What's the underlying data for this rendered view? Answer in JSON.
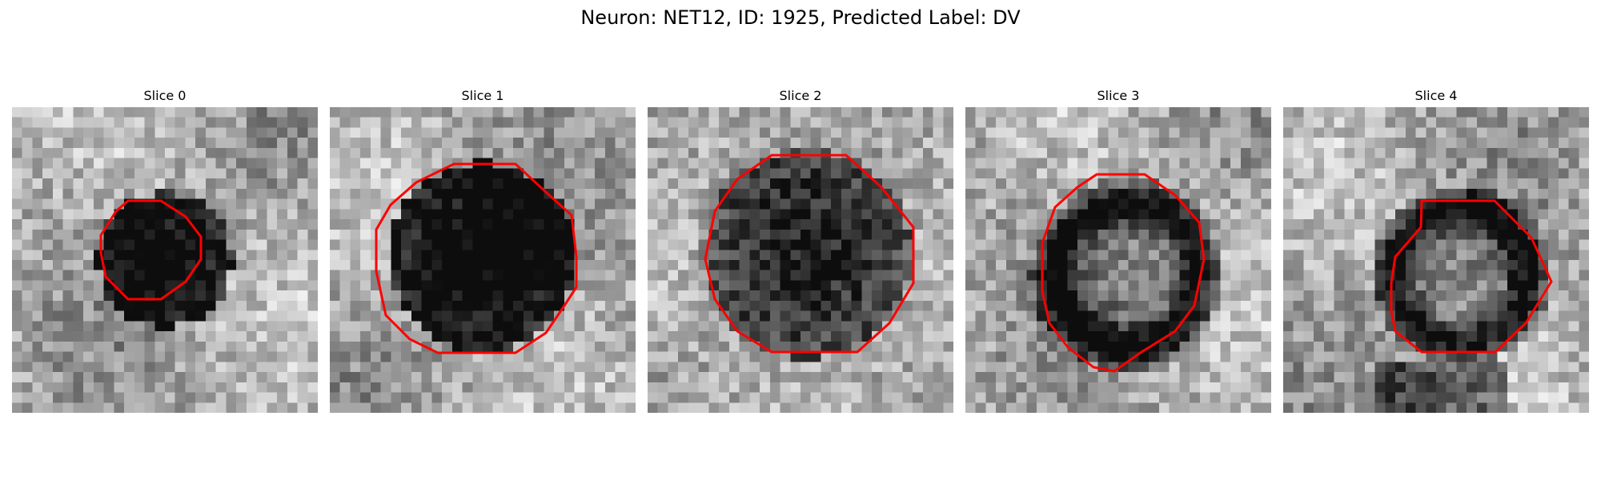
{
  "figure": {
    "title": "Neuron: NET12, ID: 1925, Predicted Label: DV"
  },
  "panels": [
    {
      "title": "Slice 0"
    },
    {
      "title": "Slice 1"
    },
    {
      "title": "Slice 2"
    },
    {
      "title": "Slice 3"
    },
    {
      "title": "Slice 4"
    }
  ],
  "colors": {
    "contour": "#ff0000",
    "background": "#ffffff",
    "colormap": "gray"
  }
}
